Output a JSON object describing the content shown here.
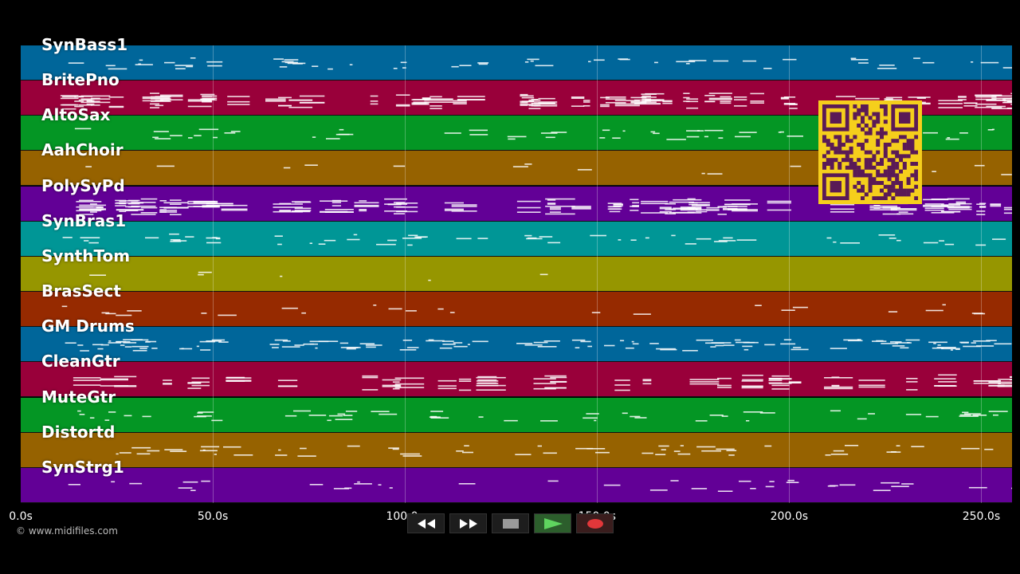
{
  "tracks": [
    {
      "name": "SynBass1",
      "color": "#00669a"
    },
    {
      "name": "BritePno",
      "color": "#99003a"
    },
    {
      "name": "AltoSax",
      "color": "#049624"
    },
    {
      "name": "AahChoir",
      "color": "#966200"
    },
    {
      "name": "PolySyPd",
      "color": "#620096"
    },
    {
      "name": "SynBras1",
      "color": "#009696"
    },
    {
      "name": "SynthTom",
      "color": "#969600"
    },
    {
      "name": "BrasSect",
      "color": "#962a00"
    },
    {
      "name": "GM Drums",
      "color": "#00669a"
    },
    {
      "name": "CleanGtr",
      "color": "#99003a"
    },
    {
      "name": "MuteGtr",
      "color": "#049624"
    },
    {
      "name": "Distortd",
      "color": "#966200"
    },
    {
      "name": "SynStrg1",
      "color": "#620096"
    }
  ],
  "timeline": {
    "ticks": [
      "0.0s",
      "50.0s",
      "100.0s",
      "150.0s",
      "200.0s",
      "250.0s"
    ],
    "tick_values": [
      0,
      50,
      100,
      150,
      200,
      250
    ],
    "max_seconds": 258
  },
  "copyright": "© www.midifiles.com",
  "controls": [
    {
      "name": "rewind-button",
      "icon": "rewind-icon"
    },
    {
      "name": "fast-forward-button",
      "icon": "fast-forward-icon"
    },
    {
      "name": "stop-button",
      "icon": "stop-icon"
    },
    {
      "name": "play-button",
      "icon": "play-icon"
    },
    {
      "name": "record-button",
      "icon": "record-icon"
    }
  ],
  "qr_code": {
    "icon": "qr-code-icon",
    "background": "#f5cf1c",
    "foreground": "#5a1a56"
  }
}
